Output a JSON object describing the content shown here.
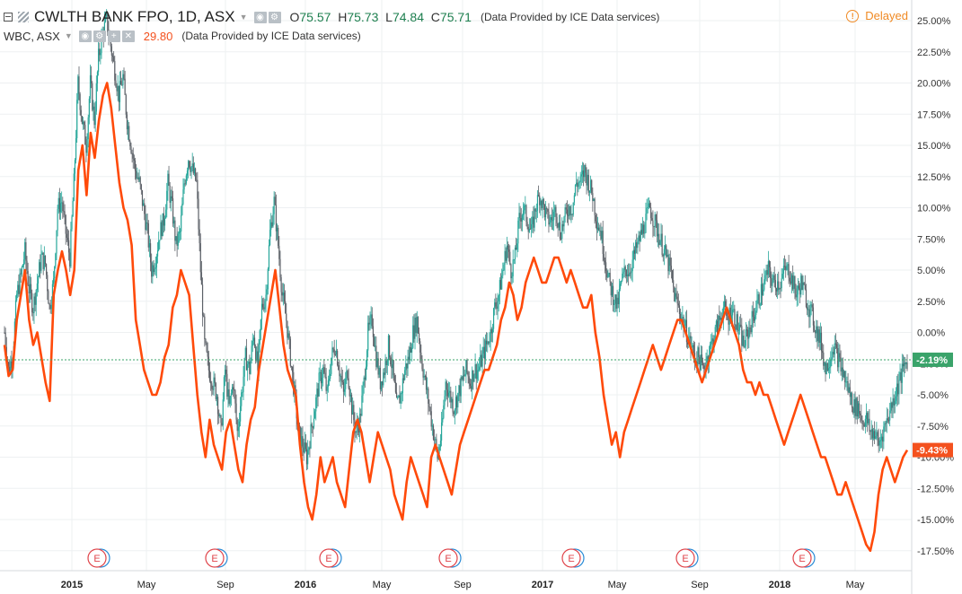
{
  "header": {
    "main_symbol": "CWLTH BANK FPO, 1D, ASX",
    "open_label": "O",
    "open": "75.57",
    "high_label": "H",
    "high": "75.73",
    "low_label": "L",
    "low": "74.84",
    "close_label": "C",
    "close": "75.71",
    "source": "(Data Provided by ICE Data services)",
    "compare_symbol": "WBC, ASX",
    "compare_last": "29.80",
    "compare_source": "(Data Provided by ICE Data services)",
    "delayed": "Delayed"
  },
  "colors": {
    "up": "#26a69a",
    "down": "#5b6067",
    "compare": "#ff4a0a",
    "current_badge": "#3aa36a",
    "compare_badge": "#f4511e",
    "text": "#333333",
    "grid": "#eef0f2"
  },
  "chart_data": {
    "type": "line",
    "y_unit": "%",
    "ylim": [
      -19,
      26
    ],
    "y_ticks": [
      "25.00%",
      "22.50%",
      "20.00%",
      "17.50%",
      "15.00%",
      "12.50%",
      "10.00%",
      "7.50%",
      "5.00%",
      "2.50%",
      "0.00%",
      "-2.50%",
      "-5.00%",
      "-7.50%",
      "-10.00%",
      "-12.50%",
      "-15.00%",
      "-17.50%"
    ],
    "x_ticks": [
      "2015",
      "May",
      "Sep",
      "2016",
      "May",
      "Sep",
      "2017",
      "May",
      "Sep",
      "2018",
      "May"
    ],
    "x_tick_bold": [
      true,
      false,
      false,
      true,
      false,
      false,
      true,
      false,
      false,
      true,
      false
    ],
    "current_label": "-2.19%",
    "compare_label": "-9.43%",
    "earnings_marker": "E",
    "earnings_count": 7,
    "series": [
      {
        "name": "CWLTH BANK FPO",
        "style": "candles",
        "values": [
          0,
          -3,
          -1.8,
          3,
          4.5,
          6.5,
          3.5,
          2,
          4,
          6,
          5.5,
          2,
          4,
          10,
          10.5,
          8,
          6,
          12,
          20,
          17,
          15,
          20,
          17,
          22,
          24,
          25,
          23,
          21,
          19,
          20.5,
          17,
          15,
          13,
          12,
          10,
          8,
          5,
          6,
          8,
          9,
          12,
          10,
          7,
          8,
          12,
          14,
          13,
          12,
          5,
          -1,
          -3,
          -4,
          -5,
          -8,
          -3,
          -6,
          -4,
          -8,
          -5,
          -2,
          -3,
          0,
          -3,
          2,
          3,
          8,
          10.5,
          7,
          3,
          1,
          -2,
          -5,
          -8,
          -9,
          -10,
          -8,
          -6,
          -4,
          -3,
          -5,
          -2,
          -1,
          -3,
          -5,
          -3,
          -6,
          -8,
          -7,
          -4,
          0,
          1,
          -2,
          -4,
          -3,
          -1,
          -3,
          -6,
          -5,
          -3,
          -2,
          0,
          1,
          -2,
          -4,
          -6,
          -8,
          -10,
          -8,
          -4,
          -5,
          -6,
          -5,
          -4,
          -3,
          -4,
          -3,
          -3,
          -2,
          -1,
          0,
          2,
          3,
          5,
          7,
          5,
          6,
          9,
          10,
          9,
          8,
          10,
          11,
          10,
          9,
          9,
          10,
          8,
          9,
          10,
          10,
          12,
          12,
          13,
          12,
          11,
          9,
          8,
          6,
          4,
          3,
          2,
          4,
          5,
          5,
          6,
          7,
          8,
          9,
          10,
          9,
          8,
          7,
          6,
          5,
          3,
          2,
          1,
          0,
          -1,
          -2,
          -2,
          -3,
          -2,
          -1,
          0,
          1,
          2,
          1,
          2,
          1,
          0,
          -1,
          0,
          1,
          2,
          3,
          4,
          5,
          4,
          4,
          4,
          5,
          5,
          4,
          3,
          4,
          3,
          2,
          1,
          0,
          -1,
          -3,
          -2,
          -1,
          -2,
          -3,
          -4,
          -5,
          -6,
          -6,
          -7,
          -7,
          -8,
          -8,
          -9,
          -8,
          -7,
          -6,
          -5,
          -4,
          -3,
          -2.2
        ]
      },
      {
        "name": "WBC, ASX",
        "style": "line",
        "values": [
          -1,
          -3.5,
          -3,
          1,
          3,
          5,
          1,
          -1,
          0,
          -2,
          -4,
          -5.5,
          3,
          5,
          6.5,
          5,
          3,
          5,
          13,
          15,
          11,
          16,
          14,
          17,
          19,
          20,
          18,
          15,
          12,
          10,
          9,
          7,
          1,
          -1,
          -3,
          -4,
          -5,
          -5,
          -4,
          -2,
          -1,
          2,
          3,
          5,
          4,
          3,
          -1,
          -5,
          -8,
          -10,
          -7,
          -9,
          -10,
          -11,
          -8,
          -7,
          -9,
          -11,
          -12,
          -9,
          -7,
          -6,
          -3,
          -1,
          1,
          3,
          5,
          2,
          -1,
          -3,
          -4,
          -5,
          -9,
          -12,
          -14,
          -15,
          -13,
          -10,
          -12,
          -11,
          -10,
          -12,
          -13,
          -14,
          -11,
          -8,
          -7,
          -8,
          -10,
          -12,
          -10,
          -8,
          -9,
          -10,
          -11,
          -13,
          -14,
          -15,
          -12,
          -10,
          -11,
          -12,
          -13,
          -14,
          -10,
          -9,
          -10,
          -11,
          -12,
          -13,
          -11,
          -9,
          -8,
          -7,
          -6,
          -5,
          -4,
          -3,
          -3,
          -2,
          -1,
          1,
          2,
          4,
          3,
          1,
          2,
          4,
          5,
          6,
          5,
          4,
          4,
          5,
          6,
          6,
          5,
          4,
          5,
          4,
          3,
          2,
          2,
          3,
          0,
          -2,
          -5,
          -7,
          -9,
          -8,
          -10,
          -8,
          -7,
          -6,
          -5,
          -4,
          -3,
          -2,
          -1,
          -2,
          -3,
          -2,
          -1,
          0,
          1,
          1,
          0,
          -1,
          -2,
          -3,
          -4,
          -3,
          -2,
          -1,
          0,
          1,
          2,
          1,
          0,
          -1,
          -3,
          -4,
          -4,
          -5,
          -4,
          -5,
          -5,
          -6,
          -7,
          -8,
          -9,
          -8,
          -7,
          -6,
          -5,
          -6,
          -7,
          -8,
          -9,
          -10,
          -10,
          -11,
          -12,
          -13,
          -13,
          -12,
          -13,
          -14,
          -15,
          -16,
          -17,
          -17.5,
          -16,
          -13,
          -11,
          -10,
          -11,
          -12,
          -11,
          -10,
          -9.43
        ]
      }
    ]
  }
}
